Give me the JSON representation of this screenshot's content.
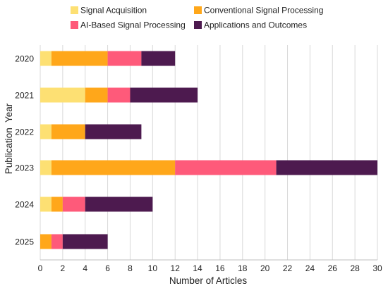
{
  "chart_data": {
    "type": "bar",
    "orientation": "horizontal",
    "stacked": true,
    "title": "",
    "xlabel": "Number of Articles",
    "ylabel": "Publication  Year",
    "categories": [
      "2020",
      "2021",
      "2022",
      "2023",
      "2024",
      "2025"
    ],
    "xlim": [
      0,
      30
    ],
    "xticks": [
      0,
      2,
      4,
      6,
      8,
      10,
      12,
      14,
      16,
      18,
      20,
      22,
      24,
      26,
      28,
      30
    ],
    "grid": "vertical",
    "legend_position": "top",
    "series": [
      {
        "name": "Signal Acquisition",
        "color": "#FDE073",
        "values": [
          1,
          4,
          1,
          1,
          1,
          0
        ]
      },
      {
        "name": "Conventional Signal Processing",
        "color": "#FFA71A",
        "values": [
          5,
          2,
          3,
          11,
          1,
          1
        ]
      },
      {
        "name": "AI-Based Signal Processing",
        "color": "#FE5A7A",
        "values": [
          3,
          2,
          0,
          9,
          2,
          1
        ]
      },
      {
        "name": "Applications and Outcomes",
        "color": "#4D1A4F",
        "values": [
          3,
          6,
          5,
          9,
          6,
          4
        ]
      }
    ]
  }
}
